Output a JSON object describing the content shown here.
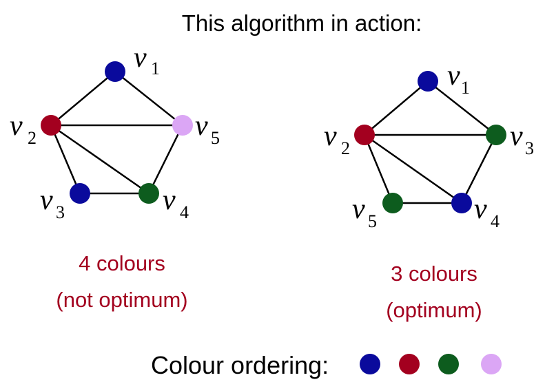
{
  "title": "This algorithm in action:",
  "colors": {
    "blue": "#0a0a9c",
    "red": "#a3001f",
    "green": "#0d5c1e",
    "lilac": "#dba6f5",
    "caption": "#a3001f"
  },
  "graphs": [
    {
      "name": "left",
      "caption": [
        "4 colours",
        "(not optimum)"
      ],
      "vertices": [
        {
          "id": "v1",
          "base": "v",
          "sub": "1",
          "color": "blue"
        },
        {
          "id": "v2",
          "base": "v",
          "sub": "2",
          "color": "red"
        },
        {
          "id": "v3",
          "base": "v",
          "sub": "3",
          "color": "blue"
        },
        {
          "id": "v4",
          "base": "v",
          "sub": "4",
          "color": "green"
        },
        {
          "id": "v5",
          "base": "v",
          "sub": "5",
          "color": "lilac"
        }
      ],
      "edges": [
        [
          "v1",
          "v2"
        ],
        [
          "v1",
          "v5"
        ],
        [
          "v2",
          "v5"
        ],
        [
          "v2",
          "v3"
        ],
        [
          "v2",
          "v4"
        ],
        [
          "v3",
          "v4"
        ],
        [
          "v4",
          "v5"
        ]
      ]
    },
    {
      "name": "right",
      "caption": [
        "3 colours",
        "(optimum)"
      ],
      "vertices": [
        {
          "id": "v1",
          "base": "v",
          "sub": "1",
          "color": "blue"
        },
        {
          "id": "v2",
          "base": "v",
          "sub": "2",
          "color": "red"
        },
        {
          "id": "v3",
          "base": "v",
          "sub": "3",
          "color": "green"
        },
        {
          "id": "v4",
          "base": "v",
          "sub": "4",
          "color": "blue"
        },
        {
          "id": "v5",
          "base": "v",
          "sub": "5",
          "color": "green"
        }
      ],
      "edges": [
        [
          "v1",
          "v2"
        ],
        [
          "v1",
          "v3"
        ],
        [
          "v2",
          "v3"
        ],
        [
          "v2",
          "v5"
        ],
        [
          "v2",
          "v4"
        ],
        [
          "v5",
          "v4"
        ],
        [
          "v4",
          "v3"
        ]
      ]
    }
  ],
  "legend": {
    "label": "Colour ordering:",
    "colors": [
      "blue",
      "red",
      "green",
      "lilac"
    ]
  }
}
